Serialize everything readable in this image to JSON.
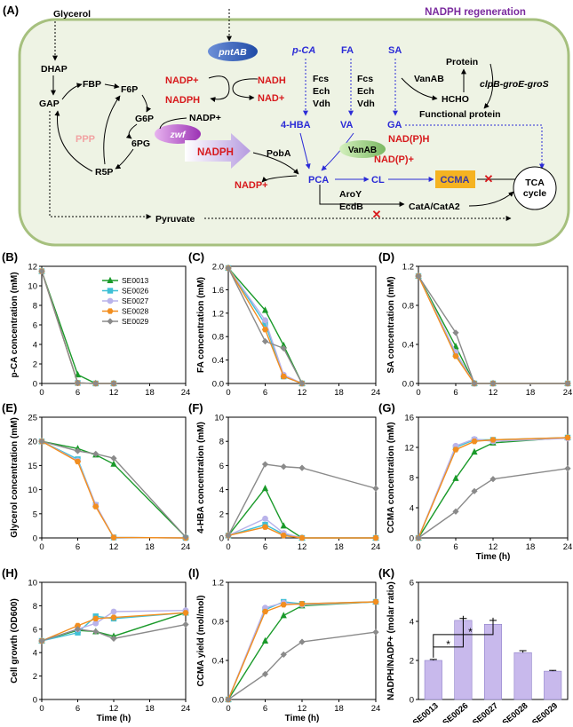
{
  "schematic": {
    "panel_label": "(A)",
    "title": "NADPH regeneration",
    "nodes": {
      "glycerol": "Glycerol",
      "dhap": "DHAP",
      "gap": "GAP",
      "fbp": "FBP",
      "f6p": "F6P",
      "g6p": "G6P",
      "sixpg": "6PG",
      "r5p": "R5P",
      "ppp": "PPP",
      "pyruvate": "Pyruvate",
      "pcaa": "p-CA",
      "fa": "FA",
      "sa": "SA",
      "fcs1": "Fcs",
      "ech1": "Ech",
      "vdh1": "Vdh",
      "fcs2": "Fcs",
      "ech2": "Ech",
      "vdh2": "Vdh",
      "hba": "4-HBA",
      "va": "VA",
      "ga": "GA",
      "pca": "PCA",
      "cl": "CL",
      "ccma": "CCMA",
      "tca": "TCA cycle",
      "pmtab": "pntAB",
      "zwf": "zwf",
      "nadp_plus_top": "NADP+",
      "nadph_top": "NADPH",
      "nadh": "NADH",
      "nad_plus": "NAD+",
      "nadp_plus_g6p": "NADP+",
      "nadph_big": "NADPH",
      "poba": "PobA",
      "nadp_plus_bottom": "NADP+",
      "vanab_oval": "VanAB",
      "nadph_va": "NAD(P)H",
      "nadp_va": "NAD(P)+",
      "vanab": "VanAB",
      "protein": "Protein",
      "hcho": "HCHO",
      "clpb": "clpB-groE-groS",
      "functional": "Functional protein",
      "aroy": "AroY",
      "ecdb": "EcdB",
      "cata": "CatA/CatA2"
    }
  },
  "legend": [
    "SE0013",
    "SE0026",
    "SE0027",
    "SE0028",
    "SE0029"
  ],
  "colors": {
    "SE0013": "#1a9a2a",
    "SE0026": "#3fc0d6",
    "SE0027": "#b9b3ea",
    "SE0028": "#f28e1f",
    "SE0029": "#8a8a8a",
    "bar": "#c8b9ec",
    "cell_bg": "#eef3e4",
    "cell_border": "#a6c07e"
  },
  "chart_data": [
    {
      "id": "B",
      "label": "(B)",
      "type": "line",
      "ylabel": "p-CA concentration (mM)",
      "xlabel": "",
      "ylim": [
        0,
        12
      ],
      "yticks": [
        0,
        2,
        4,
        6,
        8,
        10,
        12
      ],
      "xlim": [
        0,
        24
      ],
      "xticks": [
        0,
        6,
        12,
        18,
        24
      ],
      "x": [
        0,
        6,
        9,
        12
      ],
      "series": [
        {
          "name": "SE0013",
          "marker": "triangle",
          "values": [
            11.5,
            0.9,
            0,
            0
          ]
        },
        {
          "name": "SE0026",
          "marker": "square",
          "values": [
            11.5,
            0.05,
            0,
            0
          ]
        },
        {
          "name": "SE0027",
          "marker": "circle",
          "values": [
            11.5,
            0.05,
            0,
            0
          ]
        },
        {
          "name": "SE0028",
          "marker": "hexagon",
          "values": [
            11.5,
            0.05,
            0,
            0
          ]
        },
        {
          "name": "SE0029",
          "marker": "diamond",
          "values": [
            11.5,
            0.05,
            0,
            0
          ]
        }
      ]
    },
    {
      "id": "C",
      "label": "(C)",
      "type": "line",
      "ylabel": "FA concentration (mM)",
      "xlabel": "",
      "ylim": [
        0,
        2.0
      ],
      "yticks": [
        0.0,
        0.4,
        0.8,
        1.2,
        1.6,
        2.0
      ],
      "xlim": [
        0,
        24
      ],
      "xticks": [
        0,
        6,
        12,
        18,
        24
      ],
      "x": [
        0,
        6,
        9,
        12
      ],
      "series": [
        {
          "name": "SE0013",
          "marker": "triangle",
          "values": [
            1.97,
            1.25,
            0.65,
            0
          ]
        },
        {
          "name": "SE0026",
          "marker": "square",
          "values": [
            1.97,
            1.02,
            0.12,
            0
          ]
        },
        {
          "name": "SE0027",
          "marker": "circle",
          "values": [
            1.97,
            1.08,
            0.15,
            0
          ]
        },
        {
          "name": "SE0028",
          "marker": "hexagon",
          "values": [
            1.97,
            0.92,
            0.12,
            0
          ]
        },
        {
          "name": "SE0029",
          "marker": "diamond",
          "values": [
            1.97,
            0.72,
            0.6,
            0
          ]
        }
      ]
    },
    {
      "id": "D",
      "label": "(D)",
      "type": "line",
      "ylabel": "SA concentration (mM)",
      "xlabel": "",
      "ylim": [
        0,
        1.2
      ],
      "yticks": [
        0.0,
        0.4,
        0.8,
        1.2
      ],
      "xlim": [
        0,
        24
      ],
      "xticks": [
        0,
        6,
        12,
        18,
        24
      ],
      "x": [
        0,
        6,
        9,
        12,
        24
      ],
      "series": [
        {
          "name": "SE0013",
          "marker": "triangle",
          "values": [
            1.1,
            0.38,
            0,
            0,
            0
          ]
        },
        {
          "name": "SE0026",
          "marker": "square",
          "values": [
            1.1,
            0.3,
            0,
            0,
            0
          ]
        },
        {
          "name": "SE0027",
          "marker": "circle",
          "values": [
            1.1,
            0.32,
            0,
            0,
            0
          ]
        },
        {
          "name": "SE0028",
          "marker": "hexagon",
          "values": [
            1.1,
            0.28,
            0,
            0,
            0
          ]
        },
        {
          "name": "SE0029",
          "marker": "diamond",
          "values": [
            1.1,
            0.52,
            0,
            0,
            0
          ]
        }
      ]
    },
    {
      "id": "E",
      "label": "(E)",
      "type": "line",
      "ylabel": "Glycerol concentration (mM)",
      "xlabel": "",
      "ylim": [
        0,
        25
      ],
      "yticks": [
        0,
        5,
        10,
        15,
        20,
        25
      ],
      "xlim": [
        0,
        24
      ],
      "xticks": [
        0,
        6,
        12,
        18,
        24
      ],
      "x": [
        0,
        6,
        9,
        12,
        24
      ],
      "series": [
        {
          "name": "SE0013",
          "marker": "triangle",
          "values": [
            20,
            18.5,
            17.2,
            15.3,
            0.2
          ]
        },
        {
          "name": "SE0026",
          "marker": "square",
          "values": [
            20,
            16.3,
            6.8,
            0.1,
            0
          ]
        },
        {
          "name": "SE0027",
          "marker": "circle",
          "values": [
            20,
            16.0,
            6.9,
            0.1,
            0
          ]
        },
        {
          "name": "SE0028",
          "marker": "hexagon",
          "values": [
            20,
            15.8,
            6.5,
            0.1,
            0
          ]
        },
        {
          "name": "SE0029",
          "marker": "diamond",
          "values": [
            20,
            18.0,
            17.4,
            16.5,
            0.2
          ]
        }
      ]
    },
    {
      "id": "F",
      "label": "(F)",
      "type": "line",
      "ylabel": "4-HBA concentration (mM)",
      "xlabel": "",
      "ylim": [
        0,
        10
      ],
      "yticks": [
        0,
        2,
        4,
        6,
        8,
        10
      ],
      "xlim": [
        0,
        24
      ],
      "xticks": [
        0,
        6,
        12,
        18,
        24
      ],
      "x": [
        0,
        6,
        9,
        12,
        24
      ],
      "series": [
        {
          "name": "SE0013",
          "marker": "triangle",
          "values": [
            0.2,
            4.1,
            1.0,
            0,
            0
          ]
        },
        {
          "name": "SE0026",
          "marker": "square",
          "values": [
            0.2,
            1.1,
            0.3,
            0,
            0
          ]
        },
        {
          "name": "SE0027",
          "marker": "circle",
          "values": [
            0.2,
            1.6,
            0.4,
            0,
            0
          ]
        },
        {
          "name": "SE0028",
          "marker": "hexagon",
          "values": [
            0.2,
            0.9,
            0.2,
            0,
            0
          ]
        },
        {
          "name": "SE0029",
          "marker": "diamond",
          "values": [
            0.2,
            6.1,
            5.9,
            5.8,
            4.1
          ]
        }
      ]
    },
    {
      "id": "G",
      "label": "(G)",
      "type": "line",
      "ylabel": "CCMA concentration (mM)",
      "xlabel": "Time (h)",
      "ylim": [
        0,
        16
      ],
      "yticks": [
        0,
        4,
        8,
        12,
        16
      ],
      "xlim": [
        0,
        24
      ],
      "xticks": [
        0,
        6,
        12,
        18,
        24
      ],
      "x": [
        0,
        6,
        9,
        12,
        24
      ],
      "series": [
        {
          "name": "SE0013",
          "marker": "triangle",
          "values": [
            0,
            7.9,
            11.4,
            12.6,
            13.3
          ]
        },
        {
          "name": "SE0026",
          "marker": "square",
          "values": [
            0,
            12.0,
            13.0,
            13.0,
            13.3
          ]
        },
        {
          "name": "SE0027",
          "marker": "circle",
          "values": [
            0,
            12.2,
            13.1,
            12.8,
            13.2
          ]
        },
        {
          "name": "SE0028",
          "marker": "hexagon",
          "values": [
            0,
            11.7,
            12.8,
            13.0,
            13.3
          ]
        },
        {
          "name": "SE0029",
          "marker": "diamond",
          "values": [
            0,
            3.5,
            6.2,
            7.8,
            9.2
          ]
        }
      ]
    },
    {
      "id": "H",
      "label": "(H)",
      "type": "line",
      "ylabel": "Cell growth (OD600)",
      "xlabel": "Time (h)",
      "ylim": [
        0,
        10
      ],
      "yticks": [
        0,
        2,
        4,
        6,
        8,
        10
      ],
      "xlim": [
        0,
        24
      ],
      "xticks": [
        0,
        6,
        12,
        18,
        24
      ],
      "x": [
        0,
        6,
        9,
        12,
        24
      ],
      "series": [
        {
          "name": "SE0013",
          "marker": "triangle",
          "values": [
            5.0,
            5.9,
            5.8,
            5.4,
            7.4
          ]
        },
        {
          "name": "SE0026",
          "marker": "square",
          "values": [
            5.0,
            5.7,
            7.1,
            6.9,
            7.4
          ]
        },
        {
          "name": "SE0027",
          "marker": "circle",
          "values": [
            5.0,
            6.0,
            6.5,
            7.5,
            7.6
          ]
        },
        {
          "name": "SE0028",
          "marker": "hexagon",
          "values": [
            5.0,
            6.3,
            6.9,
            7.0,
            7.4
          ]
        },
        {
          "name": "SE0029",
          "marker": "diamond",
          "values": [
            5.0,
            6.0,
            5.8,
            5.2,
            6.4
          ]
        }
      ]
    },
    {
      "id": "I",
      "label": "(I)",
      "type": "line",
      "ylabel": "CCMA yield (mol/mol)",
      "xlabel": "Time (h)",
      "ylim": [
        0,
        1.2
      ],
      "yticks": [
        0.0,
        0.4,
        0.8,
        1.2
      ],
      "xlim": [
        0,
        24
      ],
      "xticks": [
        0,
        6,
        12,
        18,
        24
      ],
      "x": [
        0,
        6,
        9,
        12,
        24
      ],
      "series": [
        {
          "name": "SE0013",
          "marker": "triangle",
          "values": [
            0,
            0.6,
            0.86,
            0.96,
            1.0
          ]
        },
        {
          "name": "SE0026",
          "marker": "square",
          "values": [
            0,
            0.92,
            1.0,
            0.98,
            1.0
          ]
        },
        {
          "name": "SE0027",
          "marker": "circle",
          "values": [
            0,
            0.94,
            0.99,
            0.97,
            1.0
          ]
        },
        {
          "name": "SE0028",
          "marker": "hexagon",
          "values": [
            0,
            0.9,
            0.97,
            0.98,
            1.0
          ]
        },
        {
          "name": "SE0029",
          "marker": "diamond",
          "values": [
            0,
            0.26,
            0.46,
            0.59,
            0.69
          ]
        }
      ]
    },
    {
      "id": "K",
      "label": "(K)",
      "type": "bar",
      "ylabel": "NADPH/NADP+ (molar ratio)",
      "xlabel": "",
      "ylim": [
        0,
        6
      ],
      "yticks": [
        0,
        2,
        4,
        6
      ],
      "categories": [
        "SE0013",
        "SE0026",
        "SE0027",
        "SE0028",
        "SE0029"
      ],
      "values": [
        2.0,
        4.05,
        3.85,
        2.4,
        1.45
      ],
      "errors": [
        0.05,
        0.1,
        0.2,
        0.1,
        0.04
      ],
      "significance": "*"
    }
  ]
}
